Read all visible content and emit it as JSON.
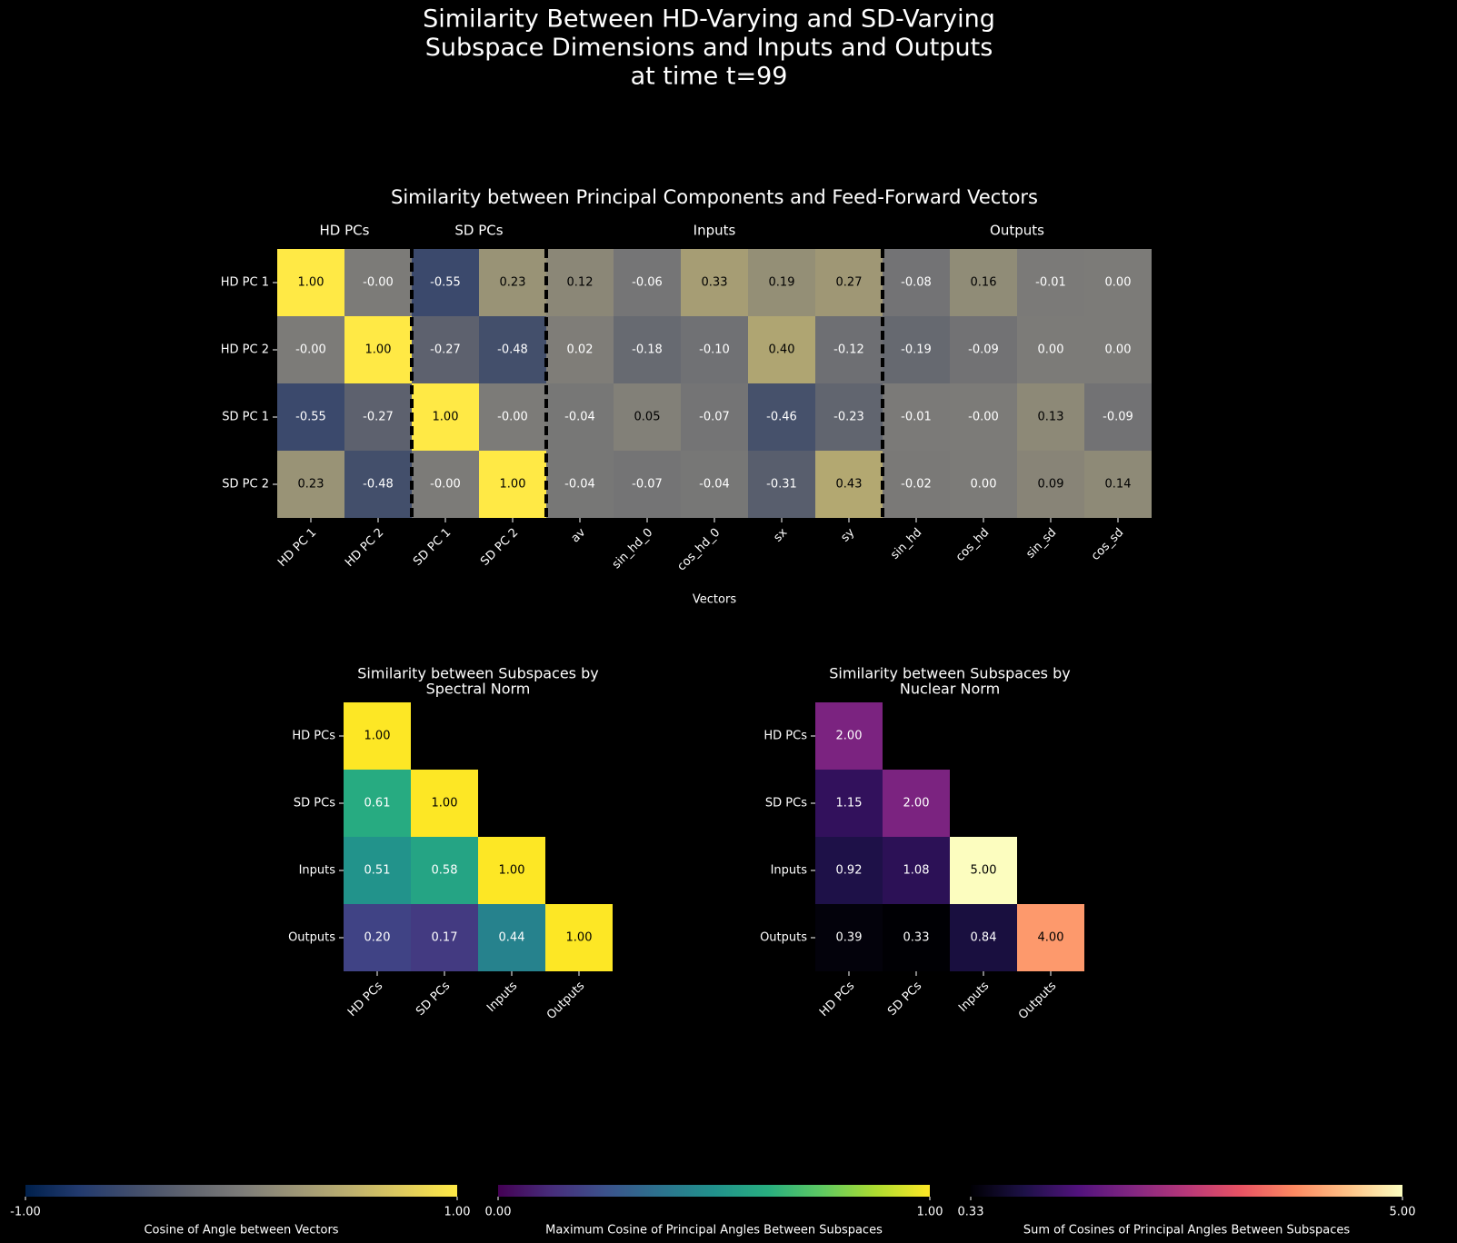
{
  "title_lines": [
    "Similarity Between HD-Varying and SD-Varying",
    "Subspace Dimensions and Inputs and Outputs",
    "at time t=99"
  ],
  "chart_data": [
    {
      "type": "heatmap",
      "title": "Similarity between Principal Components and Feed-Forward Vectors",
      "x_label": "Vectors",
      "colormap": "cividis",
      "groups": [
        {
          "name": "HD PCs",
          "size": 2
        },
        {
          "name": "SD PCs",
          "size": 2
        },
        {
          "name": "Inputs",
          "size": 5
        },
        {
          "name": "Outputs",
          "size": 4
        }
      ],
      "x_categories": [
        "HD PC 1",
        "HD PC 2",
        "SD PC 1",
        "SD PC 2",
        "av",
        "sin_hd_0",
        "cos_hd_0",
        "sx",
        "sy",
        "sin_hd",
        "cos_hd",
        "sin_sd",
        "cos_sd"
      ],
      "y_categories": [
        "HD PC 1",
        "HD PC 2",
        "SD PC 1",
        "SD PC 2"
      ],
      "values": [
        [
          1,
          0,
          -0.55,
          0.23,
          0.12,
          -0.06,
          0.33,
          0.19,
          0.27,
          -0.08,
          0.16,
          -0.01,
          0
        ],
        [
          0,
          1,
          -0.27,
          -0.48,
          0.02,
          -0.18,
          -0.1,
          0.4,
          -0.12,
          -0.19,
          -0.09,
          0,
          0
        ],
        [
          -0.55,
          -0.27,
          1,
          0,
          -0.04,
          0.05,
          -0.07,
          -0.46,
          -0.23,
          -0.01,
          0,
          0.13,
          -0.09
        ],
        [
          0.23,
          -0.48,
          0,
          1,
          -0.04,
          -0.07,
          -0.04,
          -0.31,
          0.43,
          -0.02,
          0,
          0.09,
          0.14
        ]
      ],
      "value_labels": [
        [
          "1.00",
          "-0.00",
          "-0.55",
          "0.23",
          "0.12",
          "-0.06",
          "0.33",
          "0.19",
          "0.27",
          "-0.08",
          "0.16",
          "-0.01",
          "0.00"
        ],
        [
          "-0.00",
          "1.00",
          "-0.27",
          "-0.48",
          "0.02",
          "-0.18",
          "-0.10",
          "0.40",
          "-0.12",
          "-0.19",
          "-0.09",
          "0.00",
          "0.00"
        ],
        [
          "-0.55",
          "-0.27",
          "1.00",
          "-0.00",
          "-0.04",
          "0.05",
          "-0.07",
          "-0.46",
          "-0.23",
          "-0.01",
          "-0.00",
          "0.13",
          "-0.09"
        ],
        [
          "0.23",
          "-0.48",
          "-0.00",
          "1.00",
          "-0.04",
          "-0.07",
          "-0.04",
          "-0.31",
          "0.43",
          "-0.02",
          "0.00",
          "0.09",
          "0.14"
        ]
      ],
      "vlim": [
        -1,
        1
      ],
      "colorbar": {
        "label": "Cosine of Angle between Vectors",
        "ticks": [
          {
            "value": -1,
            "label": "-1.00"
          },
          {
            "value": 1,
            "label": "1.00"
          }
        ]
      }
    },
    {
      "type": "heatmap",
      "title_lines": [
        "Similarity between Subspaces by",
        "Spectral Norm"
      ],
      "colormap": "viridis",
      "x_categories": [
        "HD PCs",
        "SD PCs",
        "Inputs",
        "Outputs"
      ],
      "y_categories": [
        "HD PCs",
        "SD PCs",
        "Inputs",
        "Outputs"
      ],
      "values": [
        [
          1,
          null,
          null,
          null
        ],
        [
          0.61,
          1,
          null,
          null
        ],
        [
          0.51,
          0.58,
          1,
          null
        ],
        [
          0.2,
          0.17,
          0.44,
          1
        ]
      ],
      "value_labels": [
        [
          "1.00",
          null,
          null,
          null
        ],
        [
          "0.61",
          "1.00",
          null,
          null
        ],
        [
          "0.51",
          "0.58",
          "1.00",
          null
        ],
        [
          "0.20",
          "0.17",
          "0.44",
          "1.00"
        ]
      ],
      "vlim": [
        0,
        1
      ],
      "colorbar": {
        "label": "Maximum Cosine of Principal Angles Between Subspaces",
        "ticks": [
          {
            "value": 0,
            "label": "0.00"
          },
          {
            "value": 1,
            "label": "1.00"
          }
        ]
      }
    },
    {
      "type": "heatmap",
      "title_lines": [
        "Similarity between Subspaces by",
        "Nuclear Norm"
      ],
      "colormap": "magma",
      "x_categories": [
        "HD PCs",
        "SD PCs",
        "Inputs",
        "Outputs"
      ],
      "y_categories": [
        "HD PCs",
        "SD PCs",
        "Inputs",
        "Outputs"
      ],
      "values": [
        [
          2,
          null,
          null,
          null
        ],
        [
          1.15,
          2,
          null,
          null
        ],
        [
          0.92,
          1.08,
          5,
          null
        ],
        [
          0.39,
          0.33,
          0.84,
          4
        ]
      ],
      "value_labels": [
        [
          "2.00",
          null,
          null,
          null
        ],
        [
          "1.15",
          "2.00",
          null,
          null
        ],
        [
          "0.92",
          "1.08",
          "5.00",
          null
        ],
        [
          "0.39",
          "0.33",
          "0.84",
          "4.00"
        ]
      ],
      "vlim": [
        0.33,
        5
      ],
      "colorbar": {
        "label": "Sum of Cosines of Principal Angles Between Subspaces",
        "ticks": [
          0.33,
          {
            "value": 5,
            "label": "5.00"
          }
        ]
      }
    }
  ]
}
